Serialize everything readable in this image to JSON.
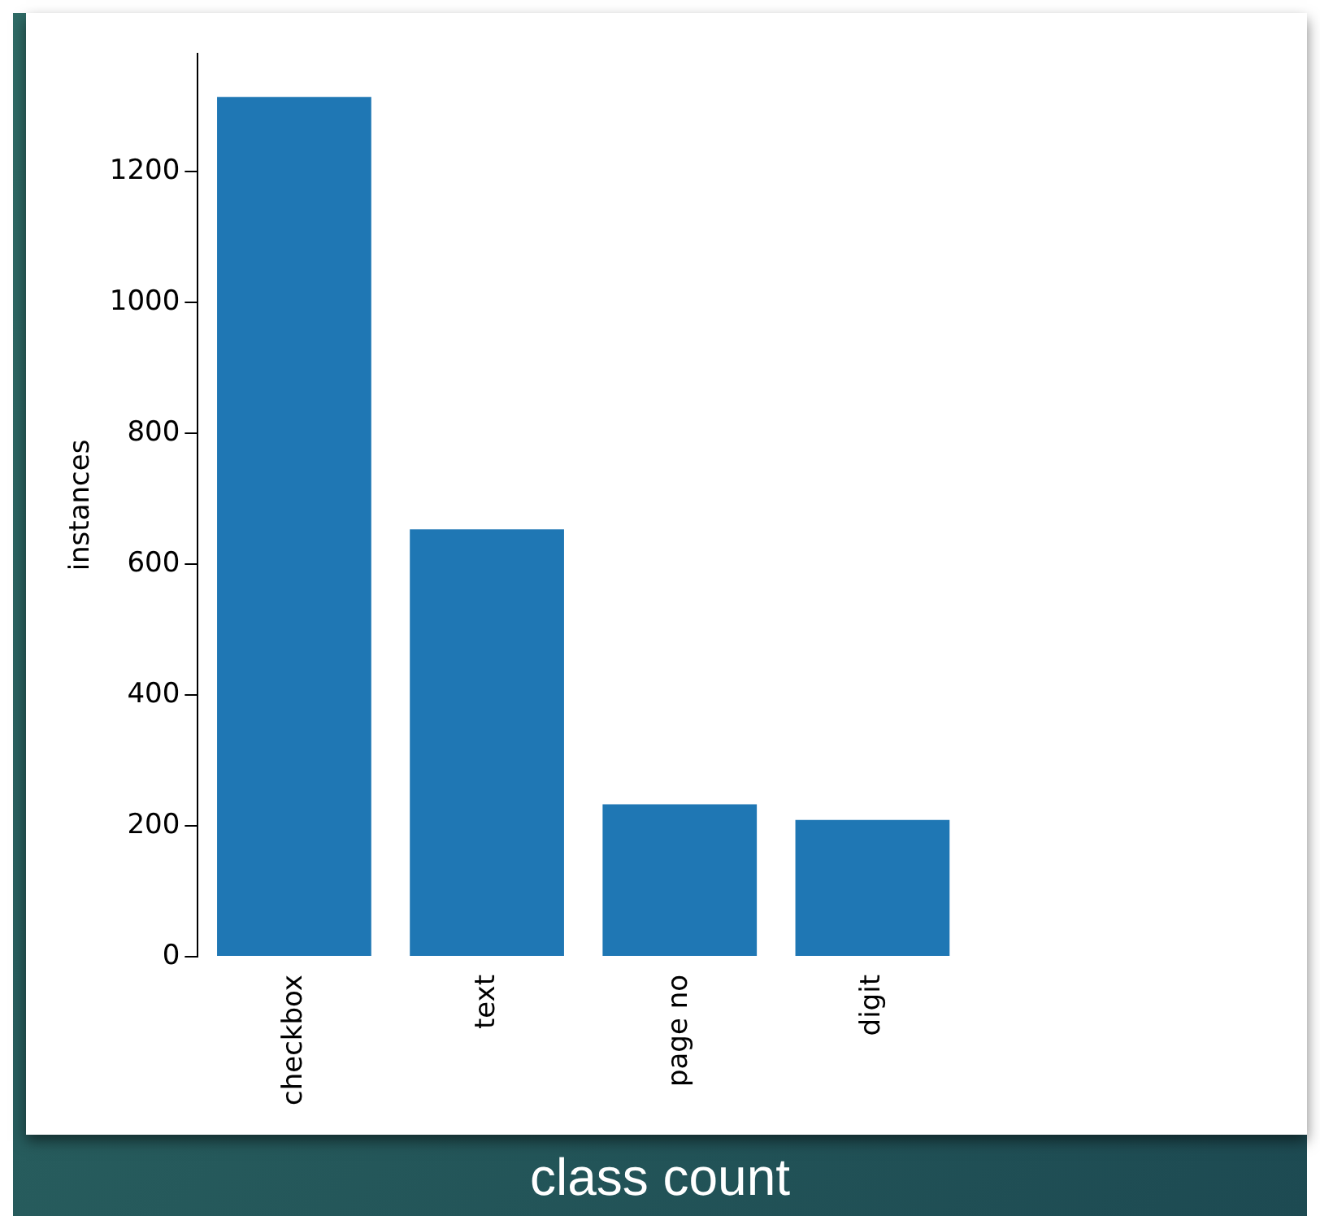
{
  "chart_data": {
    "type": "bar",
    "title": "class count",
    "ylabel": "instances",
    "categories": [
      "checkbox",
      "text",
      "page no",
      "digit"
    ],
    "values": [
      1314,
      653,
      233,
      209
    ],
    "color": "#1f77b4",
    "ylim": [
      0,
      1380
    ],
    "yticks": [
      0,
      200,
      400,
      600,
      800,
      1000,
      1200
    ],
    "grid": false
  }
}
